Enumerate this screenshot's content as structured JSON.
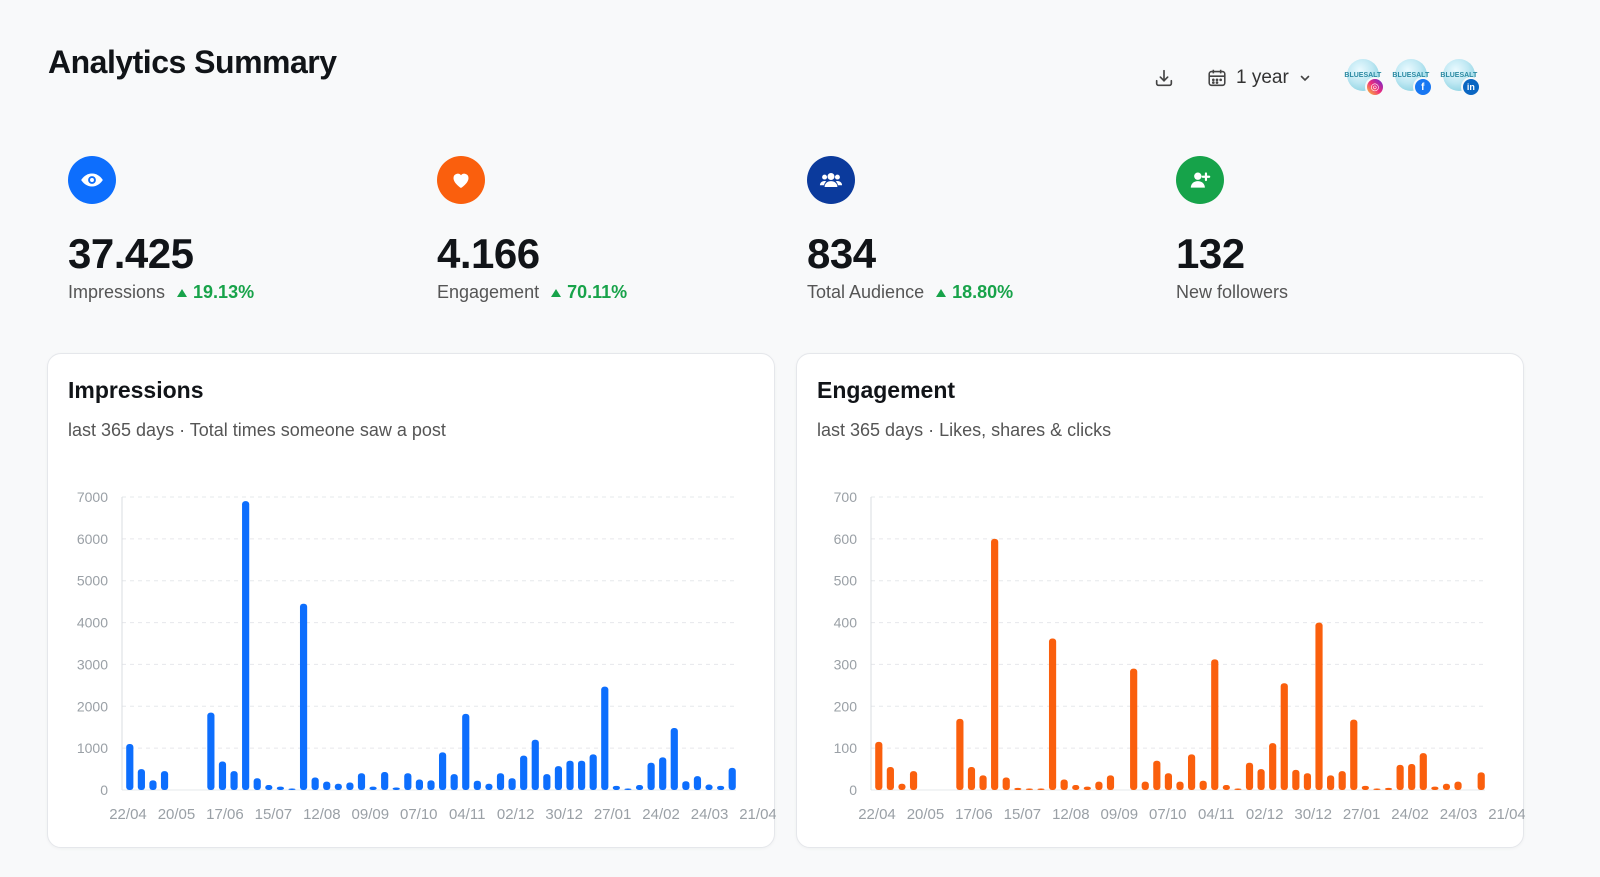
{
  "page": {
    "title": "Analytics Summary"
  },
  "toolbar": {
    "period_label": "1 year",
    "accounts": [
      {
        "avatar_text": "BLUESALT",
        "network": "instagram",
        "network_glyph": "◎",
        "color": "#ee2a7b"
      },
      {
        "avatar_text": "BLUESALT",
        "network": "facebook",
        "network_glyph": "f",
        "color": "#1877f2"
      },
      {
        "avatar_text": "BLUESALT",
        "network": "linkedin",
        "network_glyph": "in",
        "color": "#0a66c2"
      }
    ]
  },
  "stats": [
    {
      "value": "37.425",
      "label": "Impressions",
      "delta": "19.13%",
      "icon": "eye-icon",
      "color": "#0d6efd"
    },
    {
      "value": "4.166",
      "label": "Engagement",
      "delta": "70.11%",
      "icon": "heart-icon",
      "color": "#fa5f0d"
    },
    {
      "value": "834",
      "label": "Total Audience",
      "delta": "18.80%",
      "icon": "users-icon",
      "color": "#0b3a9c"
    },
    {
      "value": "132",
      "label": "New followers",
      "delta": null,
      "icon": "user-plus-icon",
      "color": "#16a34a"
    }
  ],
  "cards": {
    "impressions": {
      "title": "Impressions",
      "subtitle": "last 365 days · Total times someone saw a post"
    },
    "engagement": {
      "title": "Engagement",
      "subtitle": "last 365 days · Likes, shares & clicks"
    }
  },
  "chart_data": [
    {
      "type": "bar",
      "title": "Impressions",
      "color": "#0d6efd",
      "ylim": [
        0,
        7000
      ],
      "yticks": [
        0,
        1000,
        2000,
        3000,
        4000,
        5000,
        6000,
        7000
      ],
      "xticks": [
        "22/04",
        "20/05",
        "17/06",
        "15/07",
        "12/08",
        "09/09",
        "07/10",
        "04/11",
        "02/12",
        "30/12",
        "27/01",
        "24/02",
        "24/03",
        "21/04"
      ],
      "values": [
        1100,
        500,
        230,
        450,
        0,
        0,
        0,
        1850,
        680,
        450,
        6900,
        280,
        120,
        80,
        30,
        4450,
        300,
        200,
        150,
        180,
        400,
        80,
        430,
        60,
        400,
        250,
        230,
        900,
        380,
        1820,
        220,
        150,
        400,
        280,
        820,
        1200,
        380,
        570,
        700,
        700,
        850,
        2470,
        100,
        30,
        120,
        650,
        780,
        1480,
        210,
        330,
        130,
        100,
        530
      ]
    },
    {
      "type": "bar",
      "title": "Engagement",
      "color": "#fa5f0d",
      "ylim": [
        0,
        700
      ],
      "yticks": [
        0,
        100,
        200,
        300,
        400,
        500,
        600,
        700
      ],
      "xticks": [
        "22/04",
        "20/05",
        "17/06",
        "15/07",
        "12/08",
        "09/09",
        "07/10",
        "04/11",
        "02/12",
        "30/12",
        "27/01",
        "24/02",
        "24/03",
        "21/04"
      ],
      "values": [
        115,
        55,
        15,
        45,
        0,
        0,
        0,
        170,
        55,
        35,
        600,
        30,
        5,
        3,
        2,
        362,
        25,
        12,
        8,
        20,
        35,
        0,
        290,
        20,
        70,
        40,
        20,
        85,
        22,
        312,
        12,
        2,
        65,
        50,
        112,
        255,
        48,
        40,
        400,
        35,
        45,
        168,
        10,
        2,
        5,
        60,
        62,
        88,
        8,
        15,
        20,
        0,
        42
      ]
    }
  ]
}
